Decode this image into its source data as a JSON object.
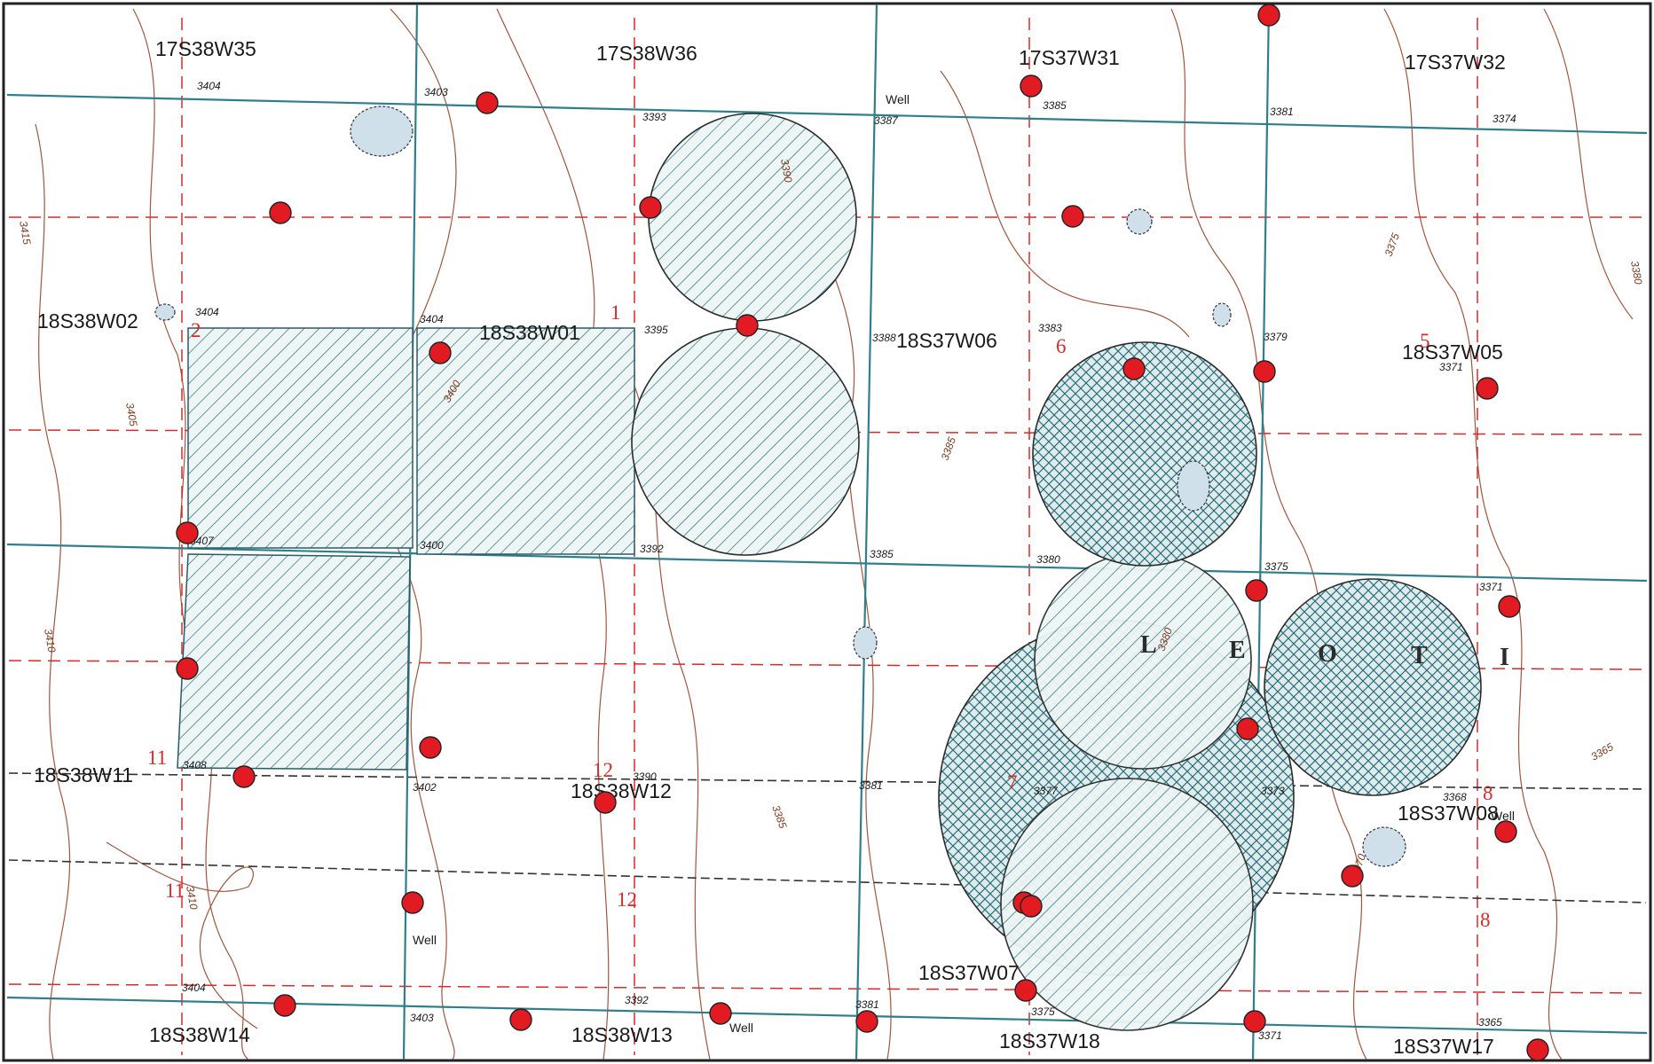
{
  "sections": [
    {
      "id": "17s38w35",
      "label": "17S38W35"
    },
    {
      "id": "17s38w36",
      "label": "17S38W36"
    },
    {
      "id": "17s37w31",
      "label": "17S37W31"
    },
    {
      "id": "17s37w32",
      "label": "17S37W32"
    },
    {
      "id": "18s38w02",
      "label": "18S38W02"
    },
    {
      "id": "18s38w01",
      "label": "18S38W01"
    },
    {
      "id": "18s37w06",
      "label": "18S37W06"
    },
    {
      "id": "18s37w05",
      "label": "18S37W05"
    },
    {
      "id": "18s38w11",
      "label": "18S38W11"
    },
    {
      "id": "18s38w12",
      "label": "18S38W12"
    },
    {
      "id": "18s37w08",
      "label": "18S37W08"
    },
    {
      "id": "18s37w07",
      "label": "18S37W07"
    },
    {
      "id": "18s38w14",
      "label": "18S38W14"
    },
    {
      "id": "18s38w13",
      "label": "18S38W13"
    },
    {
      "id": "18s37w18",
      "label": "18S37W18"
    },
    {
      "id": "18s37w17",
      "label": "18S37W17"
    }
  ],
  "section_numbers": [
    "1",
    "2",
    "5",
    "6",
    "7",
    "8",
    "8",
    "8",
    "11",
    "11",
    "12",
    "12"
  ],
  "elevations": [
    "3404",
    "3403",
    "3393",
    "3387",
    "3385",
    "3381",
    "3374",
    "3404",
    "3404",
    "3395",
    "3388",
    "3383",
    "3379",
    "3371",
    "3407",
    "3400",
    "3392",
    "3385",
    "3380",
    "3375",
    "3371",
    "3408",
    "3402",
    "3390",
    "3381",
    "3377",
    "3373",
    "3368",
    "3404",
    "3403",
    "3392",
    "3381",
    "3375",
    "3371",
    "3365"
  ],
  "contour_labels": [
    "3415",
    "3405",
    "3410",
    "3400",
    "3390",
    "3385",
    "3385",
    "3380",
    "3375",
    "3365",
    "3370",
    "3410",
    "3380"
  ],
  "well_labels": [
    "Well",
    "Well",
    "Well",
    "Well"
  ],
  "town_letters": [
    "L",
    "E",
    "O",
    "T",
    "I"
  ],
  "colors": {
    "road": "#2f7f8a",
    "hatch": "#2b6f7c",
    "well_dot": "#e21b23",
    "section_line": "#d42b2b",
    "contour": "#8b3a1e",
    "border": "#222222"
  }
}
